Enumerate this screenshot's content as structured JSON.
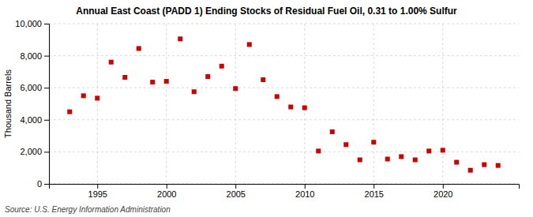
{
  "chart_data": {
    "type": "scatter",
    "title": "Annual East Coast (PADD 1) Ending Stocks of Residual Fuel Oil, 0.31 to 1.00% Sulfur",
    "y_label": "Thousand Barrels",
    "annotations": [
      "Source: U.S. Energy Information Administration"
    ],
    "x": [
      1993,
      1994,
      1995,
      1996,
      1997,
      1998,
      1999,
      2000,
      2001,
      2002,
      2003,
      2004,
      2005,
      2006,
      2007,
      2008,
      2009,
      2010,
      2011,
      2012,
      2013,
      2014,
      2015,
      2016,
      2017,
      2018,
      2019,
      2020,
      2021,
      2022,
      2023,
      2024
    ],
    "values": [
      4500,
      5500,
      5350,
      7600,
      6650,
      8450,
      6350,
      6400,
      9050,
      5750,
      6700,
      7350,
      5950,
      8700,
      6500,
      5450,
      4800,
      4750,
      2050,
      3250,
      2450,
      1500,
      2600,
      1550,
      1700,
      1500,
      2050,
      2100,
      1350,
      850,
      1200,
      1150
    ],
    "color": "#cc0000",
    "marker": "square",
    "xlim": [
      1991.5,
      2025.5
    ],
    "xticks": [
      1995,
      2000,
      2005,
      2010,
      2015,
      2020
    ],
    "ylim": [
      0,
      10000
    ],
    "yticks": [
      0,
      {
        "value": 2000,
        "label": "2,000"
      },
      {
        "value": 4000,
        "label": "4,000"
      },
      {
        "value": 6000,
        "label": "6,000"
      },
      {
        "value": 8000,
        "label": "8,000"
      },
      {
        "value": 10000,
        "label": "10,000"
      }
    ],
    "grid": true
  }
}
